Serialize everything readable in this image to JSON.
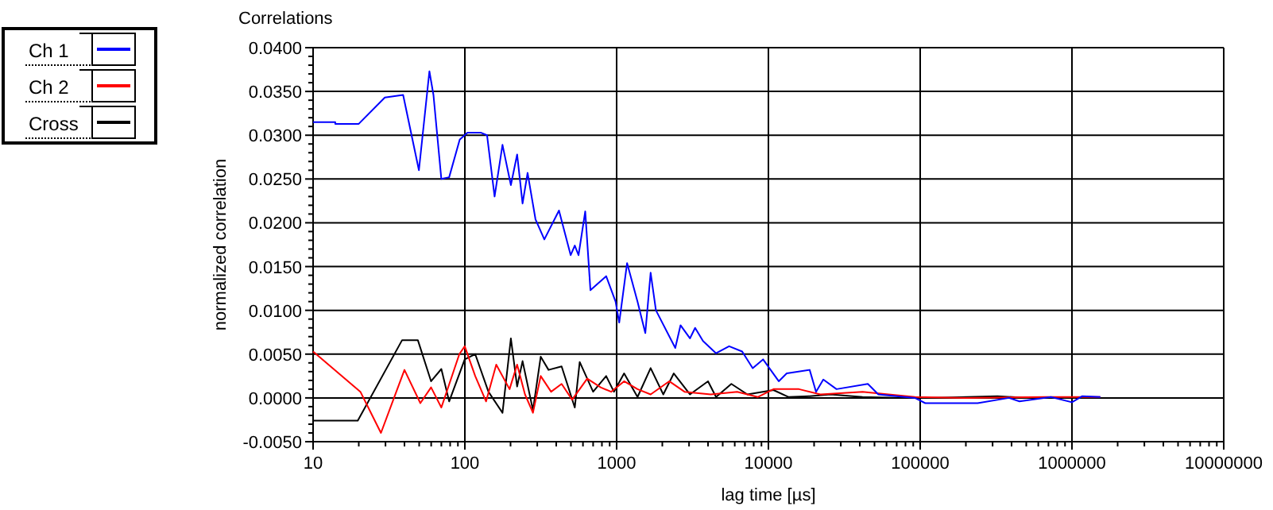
{
  "chart_data": {
    "type": "line",
    "title": "Correlations",
    "xlabel": "lag time [µs]",
    "ylabel": "normalized correlation",
    "log": "x",
    "grid": true,
    "legend": "left",
    "marker": "none",
    "line_style": "solid",
    "xlim": [
      10,
      10000000
    ],
    "ylim": [
      -0.005,
      0.04
    ],
    "xticks": [
      10,
      {
        "value": 20,
        "label": null
      },
      {
        "value": 30,
        "label": null
      },
      {
        "value": 40,
        "label": null
      },
      {
        "value": 50,
        "label": null
      },
      {
        "value": 60,
        "label": null
      },
      {
        "value": 70,
        "label": null
      },
      {
        "value": 80,
        "label": null
      },
      {
        "value": 90,
        "label": null
      },
      100,
      {
        "value": 200,
        "label": null
      },
      {
        "value": 300,
        "label": null
      },
      {
        "value": 400,
        "label": null
      },
      {
        "value": 500,
        "label": null
      },
      {
        "value": 600,
        "label": null
      },
      {
        "value": 700,
        "label": null
      },
      {
        "value": 800,
        "label": null
      },
      {
        "value": 900,
        "label": null
      },
      1000,
      {
        "value": 2000,
        "label": null
      },
      {
        "value": 3000,
        "label": null
      },
      {
        "value": 4000,
        "label": null
      },
      {
        "value": 5000,
        "label": null
      },
      {
        "value": 6000,
        "label": null
      },
      {
        "value": 7000,
        "label": null
      },
      {
        "value": 8000,
        "label": null
      },
      {
        "value": 9000,
        "label": null
      },
      10000,
      {
        "value": 20000,
        "label": null
      },
      {
        "value": 30000,
        "label": null
      },
      {
        "value": 40000,
        "label": null
      },
      {
        "value": 50000,
        "label": null
      },
      {
        "value": 60000,
        "label": null
      },
      {
        "value": 70000,
        "label": null
      },
      {
        "value": 80000,
        "label": null
      },
      {
        "value": 90000,
        "label": null
      },
      100000,
      {
        "value": 200000,
        "label": null
      },
      {
        "value": 300000,
        "label": null
      },
      {
        "value": 400000,
        "label": null
      },
      {
        "value": 500000,
        "label": null
      },
      {
        "value": 600000,
        "label": null
      },
      {
        "value": 700000,
        "label": null
      },
      {
        "value": 800000,
        "label": null
      },
      {
        "value": 900000,
        "label": null
      },
      1000000,
      {
        "value": 2000000,
        "label": null
      },
      {
        "value": 3000000,
        "label": null
      },
      {
        "value": 4000000,
        "label": null
      },
      {
        "value": 5000000,
        "label": null
      },
      {
        "value": 6000000,
        "label": null
      },
      {
        "value": 7000000,
        "label": null
      },
      {
        "value": 8000000,
        "label": null
      },
      {
        "value": 9000000,
        "label": null
      },
      10000000
    ],
    "yticks": [
      {
        "value": -0.005,
        "label": "-0.0050"
      },
      {
        "value": -0.004,
        "label": null
      },
      {
        "value": -0.003,
        "label": null
      },
      {
        "value": -0.002,
        "label": null
      },
      {
        "value": -0.001,
        "label": null
      },
      {
        "value": 0,
        "label": "0.0000"
      },
      {
        "value": 0.001,
        "label": null
      },
      {
        "value": 0.002,
        "label": null
      },
      {
        "value": 0.003,
        "label": null
      },
      {
        "value": 0.004,
        "label": null
      },
      {
        "value": 0.005,
        "label": "0.0050"
      },
      {
        "value": 0.006,
        "label": null
      },
      {
        "value": 0.007,
        "label": null
      },
      {
        "value": 0.008,
        "label": null
      },
      {
        "value": 0.009,
        "label": null
      },
      {
        "value": 0.01,
        "label": "0.0100"
      },
      {
        "value": 0.011,
        "label": null
      },
      {
        "value": 0.012,
        "label": null
      },
      {
        "value": 0.013,
        "label": null
      },
      {
        "value": 0.014,
        "label": null
      },
      {
        "value": 0.015,
        "label": "0.0150"
      },
      {
        "value": 0.016,
        "label": null
      },
      {
        "value": 0.017,
        "label": null
      },
      {
        "value": 0.018,
        "label": null
      },
      {
        "value": 0.019,
        "label": null
      },
      {
        "value": 0.02,
        "label": "0.0200"
      },
      {
        "value": 0.021,
        "label": null
      },
      {
        "value": 0.022,
        "label": null
      },
      {
        "value": 0.023,
        "label": null
      },
      {
        "value": 0.024,
        "label": null
      },
      {
        "value": 0.025,
        "label": "0.0250"
      },
      {
        "value": 0.026,
        "label": null
      },
      {
        "value": 0.027,
        "label": null
      },
      {
        "value": 0.028,
        "label": null
      },
      {
        "value": 0.029,
        "label": null
      },
      {
        "value": 0.03,
        "label": "0.0300"
      },
      {
        "value": 0.031,
        "label": null
      },
      {
        "value": 0.032,
        "label": null
      },
      {
        "value": 0.033,
        "label": null
      },
      {
        "value": 0.034,
        "label": null
      },
      {
        "value": 0.035,
        "label": "0.0350"
      },
      {
        "value": 0.036,
        "label": null
      },
      {
        "value": 0.037,
        "label": null
      },
      {
        "value": 0.038,
        "label": null
      },
      {
        "value": 0.039,
        "label": null
      },
      {
        "value": 0.04,
        "label": "0.0400"
      }
    ],
    "series": [
      {
        "name": "Ch 1",
        "color": "#0000ff",
        "x": [
          10,
          14,
          14,
          20,
          29.7,
          39.2,
          49.8,
          58.4,
          62.1,
          70,
          78.8,
          92.5,
          104,
          127,
          140,
          157,
          177,
          201,
          221,
          240,
          259,
          292,
          334,
          417,
          498,
          530,
          561,
          621,
          672,
          853,
          984,
          1040,
          1172,
          1373,
          1545,
          1675,
          1815,
          2434,
          2636,
          3041,
          3289,
          3707,
          4519,
          5510,
          6716,
          7880,
          9220,
          11700,
          13200,
          18700,
          20600,
          23000,
          28100,
          45200,
          53000,
          92300,
          108000,
          149000,
          239000,
          385000,
          451000,
          727000,
          1000000,
          1170000,
          1540000
        ],
        "values": [
          0.0315,
          0.0315,
          0.0313,
          0.0313,
          0.0343,
          0.0346,
          0.026,
          0.0373,
          0.0346,
          0.025,
          0.0252,
          0.0295,
          0.0303,
          0.0303,
          0.03,
          0.023,
          0.0289,
          0.0243,
          0.0278,
          0.0222,
          0.0257,
          0.0204,
          0.0181,
          0.0214,
          0.0163,
          0.0174,
          0.0163,
          0.0213,
          0.0123,
          0.0139,
          0.011,
          0.0086,
          0.0154,
          0.011,
          0.0074,
          0.0143,
          0.01,
          0.0057,
          0.0083,
          0.0068,
          0.008,
          0.0065,
          0.0051,
          0.0059,
          0.0053,
          0.0034,
          0.0044,
          0.0019,
          0.0028,
          0.0032,
          0.0007,
          0.0021,
          0.001,
          0.0016,
          0.0004,
          0,
          -0.0006,
          -0.0006,
          -0.0006,
          0,
          -0.0004,
          0.0001,
          -0.0005,
          0.0002,
          0.0001
        ]
      },
      {
        "name": "Ch 2",
        "color": "#ff0000",
        "x": [
          10,
          20.5,
          28,
          40,
          50.9,
          59.9,
          70,
          92,
          99.8,
          117,
          138,
          161,
          197,
          221,
          249,
          281,
          316,
          370,
          434,
          509,
          640,
          785,
          920,
          1120,
          1373,
          1675,
          2220,
          2800,
          4170,
          6230,
          8500,
          10800,
          15900,
          22000,
          41700,
          92300,
          200000,
          660000,
          1540000
        ],
        "values": [
          0.0053,
          0.0007,
          -0.004,
          0.0032,
          -0.0006,
          0.0012,
          -0.0011,
          0.005,
          0.0059,
          0.0025,
          -0.0004,
          0.0038,
          0.001,
          0.0038,
          0.0004,
          -0.0017,
          0.0025,
          0.0007,
          0.0016,
          -0.0002,
          0.0022,
          0.0012,
          0.0007,
          0.0019,
          0.001,
          0.0004,
          0.0019,
          0.0007,
          0.0004,
          0.0007,
          0.0001,
          0.001,
          0.001,
          0.0004,
          0.0007,
          0.0001,
          0,
          0.0001,
          0.0001
        ]
      },
      {
        "name": "Cross",
        "color": "#000000",
        "x": [
          10,
          19.7,
          38.6,
          49,
          59.9,
          70,
          78.8,
          99.8,
          117,
          143,
          177,
          201,
          221,
          240,
          281,
          316,
          356,
          434,
          530,
          571,
          700,
          853,
          960,
          1120,
          1373,
          1675,
          2030,
          2380,
          3040,
          4000,
          4520,
          5700,
          7270,
          10800,
          13600,
          18700,
          25600,
          41700,
          77400,
          114000,
          323000,
          515000
        ],
        "values": [
          -0.0026,
          -0.0026,
          0.0066,
          0.0066,
          0.0019,
          0.0033,
          -0.0004,
          0.0044,
          0.005,
          0.0007,
          -0.0017,
          0.0068,
          0.0013,
          0.0042,
          -0.0014,
          0.0047,
          0.0032,
          0.0036,
          -0.0011,
          0.0041,
          0.0007,
          0.0025,
          0.0007,
          0.0028,
          0.0001,
          0.0034,
          0.0004,
          0.0028,
          0.0004,
          0.0019,
          0.0001,
          0.0016,
          0.0004,
          0.0009,
          0.0001,
          0.0002,
          0.0004,
          0.0001,
          0,
          0,
          0.0002,
          0
        ]
      }
    ]
  }
}
